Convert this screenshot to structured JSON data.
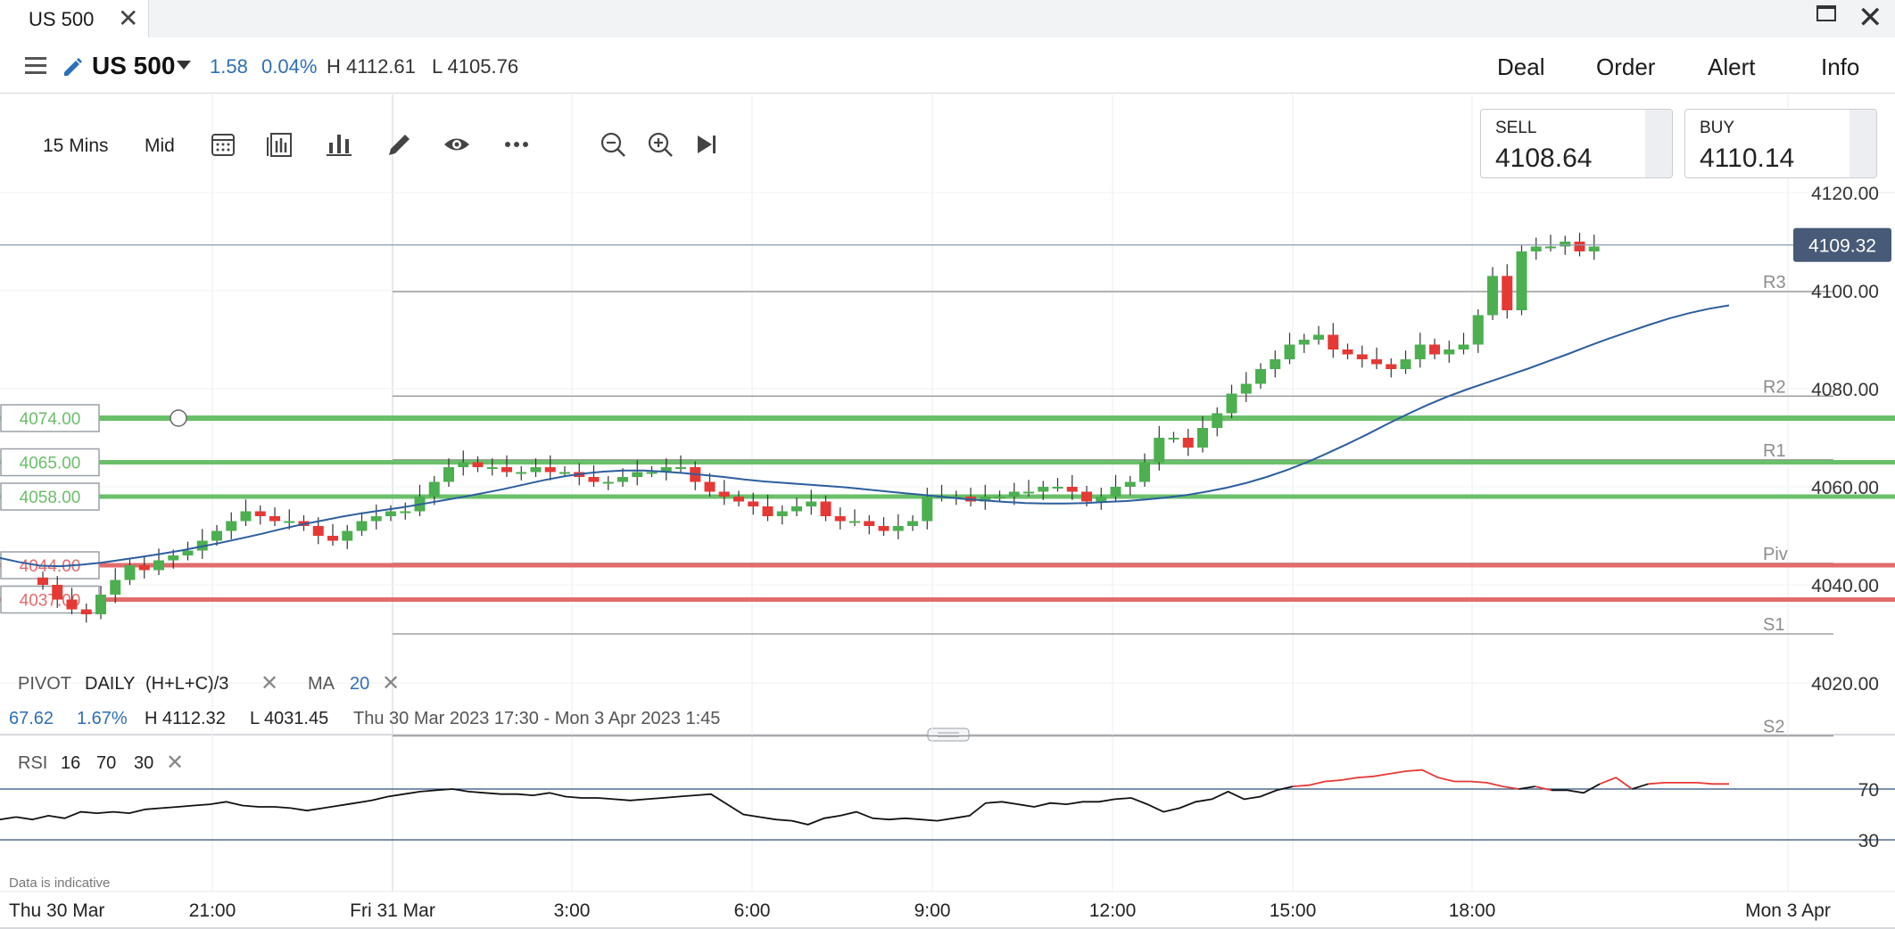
{
  "tab": {
    "title": "US 500",
    "close": "✕"
  },
  "header": {
    "instrument": "US 500",
    "change": "1.58",
    "change_pct": "0.04%",
    "high": "H 4112.61",
    "low": "L 4105.76",
    "buttons": [
      "Deal",
      "Order",
      "Alert",
      "Info"
    ]
  },
  "toolbar": {
    "timeframe": "15 Mins",
    "price_type": "Mid"
  },
  "prices": {
    "sell_label": "SELL",
    "sell_value": "4108.64",
    "buy_label": "BUY",
    "buy_value": "4110.14"
  },
  "indicators": {
    "pivot_label": "PIVOT",
    "pivot_period": "DAILY",
    "pivot_formula": "(H+L+C)/3",
    "ma_label": "MA",
    "ma_period": "20",
    "remove": "✕"
  },
  "summary": {
    "change": "67.62",
    "change_pct": "1.67%",
    "high": "H 4112.32",
    "low": "L 4031.45",
    "range": "Thu 30 Mar 2023 17:30 - Mon 3 Apr 2023 1:45"
  },
  "rsi": {
    "label": "RSI",
    "period": "16",
    "upper": "70",
    "lower": "30"
  },
  "disclaimer": "Data is indicative",
  "colors": {
    "up": "#4caf50",
    "down": "#e53935",
    "ma": "#2c5e9e",
    "support": "#6abf69",
    "resistance": "#e26b6b",
    "pivot_line": "#8c8c8c",
    "price_tag": "#475a77"
  },
  "chart_data": {
    "type": "candlestick",
    "y_axis": {
      "ticks": [
        "4120.00",
        "4100.00",
        "4080.00",
        "4060.00",
        "4040.00",
        "4020.00"
      ],
      "ylim": [
        4020,
        4120
      ]
    },
    "x_axis": {
      "ticks": [
        "Thu 30 Mar",
        "21:00",
        "Fri 31 Mar",
        "3:00",
        "6:00",
        "9:00",
        "12:00",
        "15:00",
        "18:00",
        "Mon 3 Apr"
      ]
    },
    "current_price": "4109.32",
    "pivots": [
      {
        "name": "R3",
        "value": 4099.8
      },
      {
        "name": "R2",
        "value": 4078.5
      },
      {
        "name": "R1",
        "value": 4065.5
      },
      {
        "name": "Piv",
        "value": 4044.4
      },
      {
        "name": "S1",
        "value": 4030.0
      },
      {
        "name": "S2",
        "value": 4009.2
      }
    ],
    "alert_levels": [
      {
        "label": "4074.00",
        "value": 4074,
        "kind": "support"
      },
      {
        "label": "4065.00",
        "value": 4065,
        "kind": "support"
      },
      {
        "label": "4058.00",
        "value": 4058,
        "kind": "support"
      },
      {
        "label": "4044.00",
        "value": 4044,
        "kind": "resistance"
      },
      {
        "label": "4037.00",
        "value": 4037,
        "kind": "resistance"
      }
    ],
    "closes": [
      4040,
      4037,
      4035,
      4034,
      4038,
      4041,
      4044,
      4043,
      4045,
      4046,
      4047,
      4049,
      4051,
      4053,
      4055,
      4054,
      4053,
      4053,
      4052,
      4050,
      4049,
      4051,
      4053,
      4054,
      4055,
      4055,
      4058,
      4061,
      4064,
      4065,
      4064,
      4064,
      4063,
      4063,
      4064,
      4063,
      4063,
      4062,
      4061,
      4061,
      4062,
      4063,
      4063,
      4064,
      4064,
      4061,
      4059,
      4058,
      4057,
      4056,
      4054,
      4055,
      4056,
      4057,
      4054,
      4053,
      4053,
      4052,
      4051,
      4052,
      4053,
      4058,
      4058,
      4058,
      4057,
      4058,
      4058,
      4059,
      4059,
      4060,
      4060,
      4059,
      4057,
      4058,
      4060,
      4061,
      4065,
      4070,
      4070,
      4068,
      4072,
      4075,
      4079,
      4081,
      4084,
      4086,
      4089,
      4090,
      4091,
      4088,
      4087,
      4086,
      4085,
      4084,
      4086,
      4089,
      4087,
      4088,
      4089,
      4095,
      4103,
      4096,
      4108,
      4109,
      4109,
      4110,
      4108,
      4109
    ],
    "ma20": [
      4045.5,
      4044.6,
      4043.9,
      4043.8,
      4044.1,
      4044.5,
      4045.1,
      4045.7,
      4046.3,
      4047,
      4047.8,
      4048.6,
      4049.5,
      4050.4,
      4051.4,
      4052.3,
      4053.1,
      4053.9,
      4054.6,
      4055.2,
      4055.8,
      4056.5,
      4057.2,
      4057.9,
      4058.7,
      4059.5,
      4060.4,
      4061.3,
      4062.1,
      4062.7,
      4063.1,
      4063.3,
      4063.3,
      4063.1,
      4062.8,
      4062.4,
      4062,
      4061.5,
      4061.1,
      4060.8,
      4060.5,
      4060.2,
      4059.9,
      4059.5,
      4059.1,
      4058.7,
      4058.3,
      4057.9,
      4057.5,
      4057.2,
      4056.9,
      4056.7,
      4056.6,
      4056.6,
      4056.7,
      4056.9,
      4057.1,
      4057.4,
      4057.8,
      4058.3,
      4059,
      4059.8,
      4060.8,
      4062,
      4063.4,
      4065,
      4066.8,
      4068.7,
      4070.7,
      4072.8,
      4074.8,
      4076.7,
      4078.4,
      4079.9,
      4081.3,
      4082.7,
      4084.1,
      4085.6,
      4087.1,
      4088.7,
      4090.2,
      4091.6,
      4093,
      4094.3,
      4095.4,
      4096.3,
      4097
    ],
    "rsi": [
      46,
      48,
      46,
      49,
      47,
      52,
      51,
      52,
      51,
      54,
      55,
      56,
      57,
      58,
      60,
      57,
      56,
      56,
      55,
      53,
      55,
      57,
      59,
      61,
      64,
      66,
      68,
      69,
      70,
      68,
      67,
      66,
      66,
      65,
      67,
      64,
      63,
      63,
      62,
      61,
      62,
      63,
      64,
      65,
      66,
      58,
      50,
      48,
      46,
      45,
      42,
      47,
      49,
      52,
      47,
      46,
      47,
      46,
      45,
      47,
      49,
      59,
      60,
      58,
      56,
      59,
      58,
      60,
      60,
      62,
      63,
      58,
      52,
      55,
      60,
      62,
      68,
      62,
      64,
      69,
      72,
      73,
      76,
      77,
      79,
      80,
      82,
      84,
      85,
      79,
      76,
      76,
      75,
      72,
      70,
      72,
      69,
      69,
      67,
      74,
      79,
      70,
      74,
      75,
      75,
      75,
      74,
      74
    ]
  }
}
